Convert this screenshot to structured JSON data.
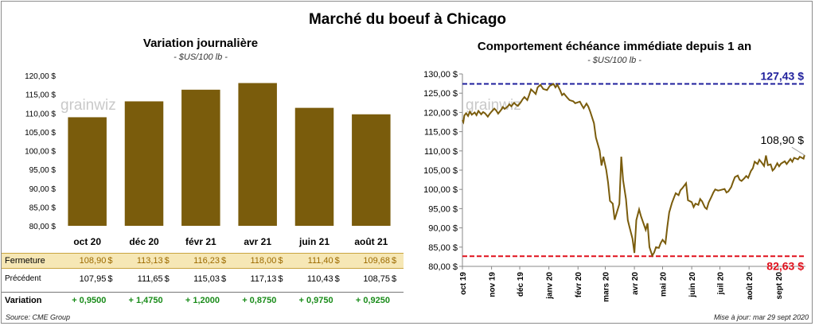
{
  "title": "Marché du boeuf à Chicago",
  "left_chart": {
    "title": "Variation journalière",
    "subtitle": "- $US/100 lb -",
    "watermark": "grainwiz"
  },
  "right_chart": {
    "title": "Comportement échéance immédiate depuis 1 an",
    "subtitle": "- $US/100 lb -",
    "watermark": "grainwiz",
    "ref_high_label": "127,43 $",
    "ref_low_label": "82,63 $",
    "last_label": "108,90 $"
  },
  "table": {
    "rows": [
      {
        "label": "Fermeture",
        "values": [
          "108,90",
          "113,13",
          "116,23",
          "118,00",
          "111,40",
          "109,68"
        ],
        "unit": "$"
      },
      {
        "label": "Précédent",
        "values": [
          "107,95",
          "111,65",
          "115,03",
          "117,13",
          "110,43",
          "108,75"
        ],
        "unit": "$"
      },
      {
        "label": "Variation",
        "values": [
          "+ 0,9500",
          "+ 1,4750",
          "+ 1,2000",
          "+ 0,8750",
          "+ 0,9750",
          "+ 0,9250"
        ],
        "unit": ""
      }
    ]
  },
  "footer": {
    "source": "Source: CME Group",
    "updated": "Mise à jour: mar 29 sept 2020"
  },
  "colors": {
    "bar": "#7a5c0c",
    "line": "#7a5c0c",
    "ref_high": "#1f1f9c",
    "ref_low": "#e0101c",
    "fermeture_bg": "#f6e7b5",
    "fermeture_text": "#9c6a00",
    "variation_text": "#1a8c1a"
  },
  "chart_data": [
    {
      "type": "bar",
      "categories": [
        "oct 20",
        "déc 20",
        "févr 21",
        "avr 21",
        "juin 21",
        "août 21"
      ],
      "values": [
        108.9,
        113.13,
        116.23,
        118.0,
        111.4,
        109.68
      ],
      "ylim": [
        80,
        120
      ],
      "yticks": [
        "80,00 $",
        "85,00 $",
        "90,00 $",
        "95,00 $",
        "100,00 $",
        "105,00 $",
        "110,00 $",
        "115,00 $",
        "120,00 $"
      ],
      "grid": false
    },
    {
      "type": "line",
      "ylim": [
        80,
        130
      ],
      "yticks": [
        "80,00 $",
        "85,00 $",
        "90,00 $",
        "95,00 $",
        "100,00 $",
        "105,00 $",
        "110,00 $",
        "115,00 $",
        "120,00 $",
        "125,00 $",
        "130,00 $"
      ],
      "xticks": [
        "oct 19",
        "nov 19",
        "déc 19",
        "janv 20",
        "févr 20",
        "mars 20",
        "avr 20",
        "mai 20",
        "juin 20",
        "juil 20",
        "août 20",
        "sept 20"
      ],
      "reference_lines": [
        127.43,
        82.63
      ],
      "series": [
        {
          "x": [
            "2019-10-01",
            "2019-10-02",
            "2019-10-03",
            "2019-10-05",
            "2019-10-07",
            "2019-10-09",
            "2019-10-11",
            "2019-10-14",
            "2019-10-16",
            "2019-10-18",
            "2019-10-21",
            "2019-10-23",
            "2019-10-25",
            "2019-10-28",
            "2019-10-30",
            "2019-11-01",
            "2019-11-04",
            "2019-11-06",
            "2019-11-08",
            "2019-11-11",
            "2019-11-13",
            "2019-11-15",
            "2019-11-18",
            "2019-11-20",
            "2019-11-22",
            "2019-11-25",
            "2019-11-27",
            "2019-11-29",
            "2019-12-02",
            "2019-12-04",
            "2019-12-06",
            "2019-12-09",
            "2019-12-11",
            "2019-12-13",
            "2019-12-16",
            "2019-12-18",
            "2019-12-20",
            "2019-12-23",
            "2019-12-26",
            "2019-12-30",
            "2020-01-02",
            "2020-01-06",
            "2020-01-08",
            "2020-01-10",
            "2020-01-13",
            "2020-01-15",
            "2020-01-17",
            "2020-01-21",
            "2020-01-23",
            "2020-01-27",
            "2020-01-29",
            "2020-02-03",
            "2020-02-05",
            "2020-02-07",
            "2020-02-10",
            "2020-02-12",
            "2020-02-14",
            "2020-02-18",
            "2020-02-20",
            "2020-02-24",
            "2020-02-26",
            "2020-02-28",
            "2020-03-02",
            "2020-03-04",
            "2020-03-06",
            "2020-03-09",
            "2020-03-11",
            "2020-03-13",
            "2020-03-16",
            "2020-03-18",
            "2020-03-20",
            "2020-03-23",
            "2020-03-25",
            "2020-03-27",
            "2020-03-30",
            "2020-04-01",
            "2020-04-03",
            "2020-04-06",
            "2020-04-08",
            "2020-04-13",
            "2020-04-15",
            "2020-04-17",
            "2020-04-20",
            "2020-04-22",
            "2020-04-24",
            "2020-04-27",
            "2020-04-29",
            "2020-05-01",
            "2020-05-04",
            "2020-05-06",
            "2020-05-08",
            "2020-05-11",
            "2020-05-13",
            "2020-05-15",
            "2020-05-18",
            "2020-05-20",
            "2020-05-22",
            "2020-05-26",
            "2020-05-28",
            "2020-06-01",
            "2020-06-03",
            "2020-06-05",
            "2020-06-08",
            "2020-06-10",
            "2020-06-12",
            "2020-06-15",
            "2020-06-17",
            "2020-06-19",
            "2020-06-22",
            "2020-06-24",
            "2020-06-26",
            "2020-06-29",
            "2020-07-01",
            "2020-07-06",
            "2020-07-08",
            "2020-07-10",
            "2020-07-13",
            "2020-07-15",
            "2020-07-17",
            "2020-07-20",
            "2020-07-22",
            "2020-07-24",
            "2020-07-27",
            "2020-07-29",
            "2020-07-31",
            "2020-08-03",
            "2020-08-05",
            "2020-08-07",
            "2020-08-10",
            "2020-08-12",
            "2020-08-14",
            "2020-08-17",
            "2020-08-19",
            "2020-08-21",
            "2020-08-24",
            "2020-08-26",
            "2020-08-28",
            "2020-08-31",
            "2020-09-02",
            "2020-09-04",
            "2020-09-08",
            "2020-09-10",
            "2020-09-14",
            "2020-09-16",
            "2020-09-18",
            "2020-09-22",
            "2020-09-24",
            "2020-09-28",
            "2020-09-29"
          ],
          "values": [
            118.0,
            117.5,
            119.2,
            119.8,
            119.1,
            120.2,
            119.4,
            120.0,
            119.3,
            120.4,
            119.5,
            120.1,
            119.8,
            118.9,
            119.6,
            120.2,
            121.0,
            120.5,
            119.7,
            120.6,
            121.4,
            120.9,
            121.5,
            122.1,
            121.6,
            122.5,
            122.0,
            121.7,
            122.6,
            123.4,
            124.0,
            123.2,
            124.5,
            126.0,
            125.3,
            124.8,
            126.5,
            127.2,
            126.1,
            125.8,
            126.9,
            127.4,
            126.5,
            127.2,
            125.7,
            124.5,
            124.9,
            123.7,
            123.2,
            122.9,
            122.4,
            122.8,
            121.9,
            121.1,
            122.3,
            121.5,
            120.2,
            117.2,
            113.5,
            110.1,
            106.2,
            108.5,
            105.1,
            101.8,
            97.0,
            96.3,
            92.1,
            93.8,
            96.2,
            108.5,
            102.4,
            97.5,
            92.0,
            90.0,
            87.2,
            83.5,
            92.0,
            94.8,
            93.0,
            89.5,
            91.2,
            85.0,
            82.8,
            83.6,
            85.0,
            84.8,
            86.1,
            86.9,
            86.0,
            90.2,
            94.0,
            96.5,
            97.8,
            99.0,
            98.5,
            99.8,
            100.3,
            101.6,
            97.2,
            96.7,
            95.4,
            96.3,
            96.0,
            97.5,
            96.9,
            95.3,
            94.9,
            96.6,
            98.1,
            99.2,
            100.0,
            99.7,
            99.8,
            100.1,
            99.2,
            99.5,
            100.6,
            102.0,
            103.2,
            103.6,
            102.5,
            102.2,
            102.9,
            103.5,
            103.0,
            104.8,
            105.5,
            107.2,
            106.6,
            107.7,
            107.1,
            106.1,
            108.8,
            106.3,
            106.5,
            104.9,
            105.4,
            106.8,
            106.0,
            106.7,
            107.3,
            106.6,
            107.9,
            107.2,
            108.2,
            107.8,
            108.5,
            108.0,
            108.9
          ]
        }
      ]
    }
  ]
}
